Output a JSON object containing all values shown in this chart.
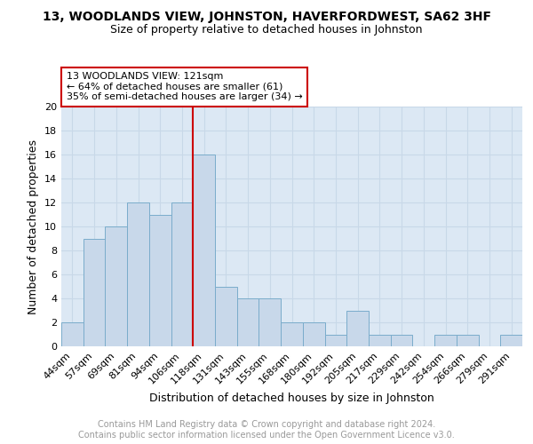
{
  "title1": "13, WOODLANDS VIEW, JOHNSTON, HAVERFORDWEST, SA62 3HF",
  "title2": "Size of property relative to detached houses in Johnston",
  "xlabel": "Distribution of detached houses by size in Johnston",
  "ylabel": "Number of detached properties",
  "categories": [
    "44sqm",
    "57sqm",
    "69sqm",
    "81sqm",
    "94sqm",
    "106sqm",
    "118sqm",
    "131sqm",
    "143sqm",
    "155sqm",
    "168sqm",
    "180sqm",
    "192sqm",
    "205sqm",
    "217sqm",
    "229sqm",
    "242sqm",
    "254sqm",
    "266sqm",
    "279sqm",
    "291sqm"
  ],
  "values": [
    2,
    9,
    10,
    12,
    11,
    12,
    16,
    5,
    4,
    4,
    2,
    2,
    1,
    3,
    1,
    1,
    0,
    1,
    1,
    0,
    1
  ],
  "bar_color": "#c8d8ea",
  "bar_edge_color": "#7aaccb",
  "vline_color": "#cc0000",
  "annotation_text": "13 WOODLANDS VIEW: 121sqm\n← 64% of detached houses are smaller (61)\n35% of semi-detached houses are larger (34) →",
  "annotation_box_color": "#ffffff",
  "annotation_box_edge": "#cc0000",
  "ylim": [
    0,
    20
  ],
  "yticks": [
    0,
    2,
    4,
    6,
    8,
    10,
    12,
    14,
    16,
    18,
    20
  ],
  "grid_color": "#c8d8e8",
  "background_color": "#dce8f4",
  "footer_text": "Contains HM Land Registry data © Crown copyright and database right 2024.\nContains public sector information licensed under the Open Government Licence v3.0.",
  "title1_fontsize": 10,
  "title2_fontsize": 9,
  "xlabel_fontsize": 9,
  "ylabel_fontsize": 9,
  "tick_fontsize": 8,
  "annotation_fontsize": 8,
  "footer_fontsize": 7
}
